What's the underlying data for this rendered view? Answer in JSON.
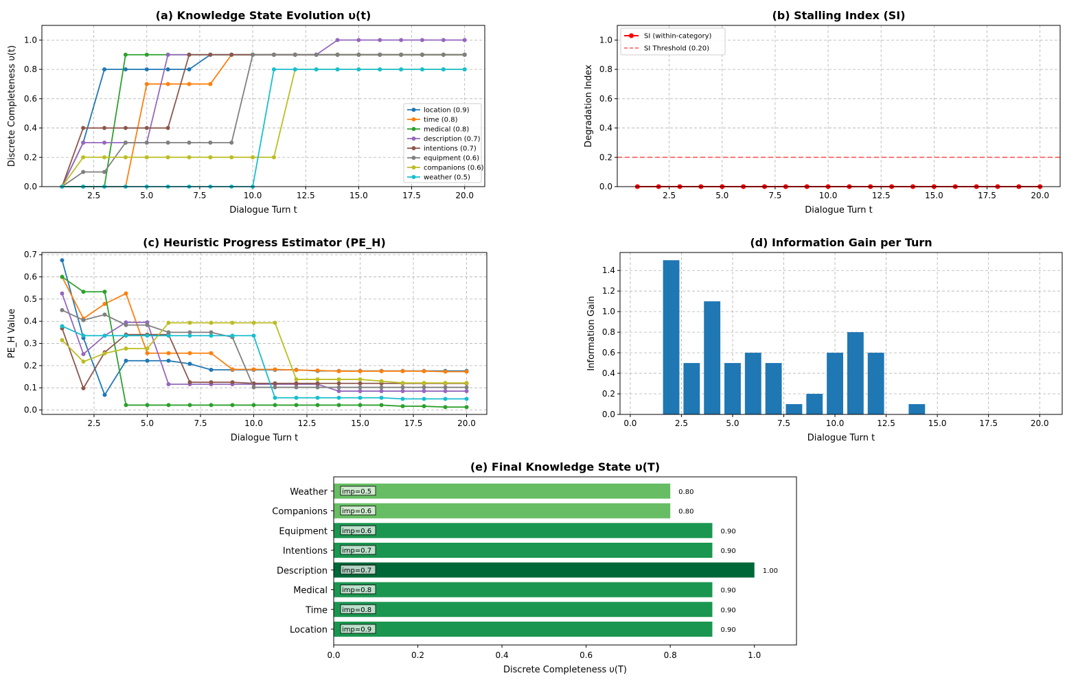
{
  "figure_type": "matplotlib multi-panel chart",
  "chart_data": [
    {
      "id": "a",
      "type": "line",
      "title": "(a) Knowledge State Evolution υ(t)",
      "xlabel": "Dialogue Turn t",
      "ylabel": "Discrete Completeness υ(t)",
      "xlim": [
        0.05,
        20.95
      ],
      "ylim": [
        0,
        1.1
      ],
      "xticks": [
        2.5,
        5.0,
        7.5,
        10.0,
        12.5,
        15.0,
        17.5,
        20.0
      ],
      "yticks": [
        0.0,
        0.2,
        0.4,
        0.6,
        0.8,
        1.0
      ],
      "grid": true,
      "legend_position": "lower right",
      "x": [
        1,
        2,
        3,
        4,
        5,
        6,
        7,
        8,
        9,
        10,
        11,
        12,
        13,
        14,
        15,
        16,
        17,
        18,
        19,
        20
      ],
      "series": [
        {
          "name": "location (0.9)",
          "color": "#1f77b4",
          "values": [
            0,
            0.3,
            0.8,
            0.8,
            0.8,
            0.8,
            0.8,
            0.9,
            0.9,
            0.9,
            0.9,
            0.9,
            0.9,
            0.9,
            0.9,
            0.9,
            0.9,
            0.9,
            0.9,
            0.9
          ]
        },
        {
          "name": "time (0.8)",
          "color": "#ff7f0e",
          "values": [
            0,
            0,
            0,
            0,
            0.7,
            0.7,
            0.7,
            0.7,
            0.9,
            0.9,
            0.9,
            0.9,
            0.9,
            0.9,
            0.9,
            0.9,
            0.9,
            0.9,
            0.9,
            0.9
          ]
        },
        {
          "name": "medical (0.8)",
          "color": "#2ca02c",
          "values": [
            0,
            0,
            0,
            0.9,
            0.9,
            0.9,
            0.9,
            0.9,
            0.9,
            0.9,
            0.9,
            0.9,
            0.9,
            0.9,
            0.9,
            0.9,
            0.9,
            0.9,
            0.9,
            0.9
          ]
        },
        {
          "name": "description (0.7)",
          "color": "#9467bd",
          "values": [
            0,
            0.3,
            0.3,
            0.3,
            0.3,
            0.9,
            0.9,
            0.9,
            0.9,
            0.9,
            0.9,
            0.9,
            0.9,
            1.0,
            1.0,
            1.0,
            1.0,
            1.0,
            1.0,
            1.0
          ]
        },
        {
          "name": "intentions (0.7)",
          "color": "#8c564b",
          "values": [
            0,
            0.4,
            0.4,
            0.4,
            0.4,
            0.4,
            0.9,
            0.9,
            0.9,
            0.9,
            0.9,
            0.9,
            0.9,
            0.9,
            0.9,
            0.9,
            0.9,
            0.9,
            0.9,
            0.9
          ]
        },
        {
          "name": "equipment (0.6)",
          "color": "#7f7f7f",
          "values": [
            0,
            0.1,
            0.1,
            0.3,
            0.3,
            0.3,
            0.3,
            0.3,
            0.3,
            0.9,
            0.9,
            0.9,
            0.9,
            0.9,
            0.9,
            0.9,
            0.9,
            0.9,
            0.9,
            0.9
          ]
        },
        {
          "name": "companions (0.6)",
          "color": "#bcbd22",
          "values": [
            0,
            0.2,
            0.2,
            0.2,
            0.2,
            0.2,
            0.2,
            0.2,
            0.2,
            0.2,
            0.2,
            0.8,
            0.8,
            0.8,
            0.8,
            0.8,
            0.8,
            0.8,
            0.8,
            0.8
          ]
        },
        {
          "name": "weather (0.5)",
          "color": "#17becf",
          "values": [
            0,
            0,
            0,
            0,
            0,
            0,
            0,
            0,
            0,
            0,
            0.8,
            0.8,
            0.8,
            0.8,
            0.8,
            0.8,
            0.8,
            0.8,
            0.8,
            0.8
          ]
        }
      ]
    },
    {
      "id": "b",
      "type": "line",
      "title": "(b) Stalling Index (SI)",
      "xlabel": "Dialogue Turn t",
      "ylabel": "Degradation Index",
      "xlim": [
        0.05,
        20.95
      ],
      "ylim": [
        0,
        1.1
      ],
      "xticks": [
        2.5,
        5.0,
        7.5,
        10.0,
        12.5,
        15.0,
        17.5,
        20.0
      ],
      "yticks": [
        0.0,
        0.2,
        0.4,
        0.6,
        0.8,
        1.0
      ],
      "grid": true,
      "legend_position": "upper left",
      "x": [
        1,
        2,
        3,
        4,
        5,
        6,
        7,
        8,
        9,
        10,
        11,
        12,
        13,
        14,
        15,
        16,
        17,
        18,
        19,
        20
      ],
      "series": [
        {
          "name": "SI (within-category)",
          "color": "#ff0000",
          "values": [
            0,
            0,
            0,
            0,
            0,
            0,
            0,
            0,
            0,
            0,
            0,
            0,
            0,
            0,
            0,
            0,
            0,
            0,
            0,
            0
          ]
        }
      ],
      "hline": {
        "name": "SI Threshold (0.20)",
        "y": 0.2,
        "color": "#ff5555"
      }
    },
    {
      "id": "c",
      "type": "line",
      "title": "(c) Heuristic Progress Estimator (PE_H)",
      "xlabel": "Dialogue Turn t",
      "ylabel": "PE_H Value",
      "xlim": [
        0.05,
        20.95
      ],
      "ylim": [
        -0.02,
        0.71
      ],
      "xticks": [
        2.5,
        5.0,
        7.5,
        10.0,
        12.5,
        15.0,
        17.5,
        20.0
      ],
      "yticks": [
        0.0,
        0.1,
        0.2,
        0.3,
        0.4,
        0.5,
        0.6,
        0.7
      ],
      "grid": true,
      "x": [
        1,
        2,
        3,
        4,
        5,
        6,
        7,
        8,
        9,
        10,
        11,
        12,
        13,
        14,
        15,
        16,
        17,
        18,
        19,
        20
      ],
      "series": [
        {
          "color": "#1f77b4",
          "values": [
            0.675,
            0.325,
            0.068,
            0.222,
            0.222,
            0.222,
            0.208,
            0.181,
            0.181,
            0.181,
            0.181,
            0.181,
            0.176,
            0.176,
            0.176,
            0.176,
            0.176,
            0.176,
            0.176,
            0.176
          ]
        },
        {
          "color": "#ff7f0e",
          "values": [
            0.6,
            0.412,
            0.478,
            0.525,
            0.256,
            0.256,
            0.256,
            0.256,
            0.183,
            0.183,
            0.183,
            0.18,
            0.178,
            0.175,
            0.175,
            0.175,
            0.175,
            0.175,
            0.173,
            0.173
          ]
        },
        {
          "color": "#2ca02c",
          "values": [
            0.6,
            0.533,
            0.533,
            0.022,
            0.022,
            0.022,
            0.022,
            0.022,
            0.022,
            0.022,
            0.022,
            0.022,
            0.022,
            0.022,
            0.022,
            0.022,
            0.017,
            0.017,
            0.013,
            0.013
          ]
        },
        {
          "color": "#9467bd",
          "values": [
            0.525,
            0.252,
            0.335,
            0.395,
            0.395,
            0.116,
            0.116,
            0.116,
            0.116,
            0.116,
            0.116,
            0.116,
            0.116,
            0.085,
            0.085,
            0.085,
            0.085,
            0.085,
            0.085,
            0.085
          ]
        },
        {
          "color": "#8c564b",
          "values": [
            0.368,
            0.098,
            0.26,
            0.34,
            0.34,
            0.34,
            0.125,
            0.125,
            0.125,
            0.12,
            0.12,
            0.12,
            0.12,
            0.12,
            0.12,
            0.12,
            0.12,
            0.12,
            0.12,
            0.12
          ]
        },
        {
          "color": "#7f7f7f",
          "values": [
            0.45,
            0.405,
            0.43,
            0.383,
            0.383,
            0.35,
            0.35,
            0.35,
            0.328,
            0.102,
            0.102,
            0.102,
            0.102,
            0.102,
            0.102,
            0.102,
            0.102,
            0.102,
            0.102,
            0.102
          ]
        },
        {
          "color": "#bcbd22",
          "values": [
            0.315,
            0.218,
            0.255,
            0.277,
            0.277,
            0.393,
            0.393,
            0.393,
            0.393,
            0.393,
            0.393,
            0.138,
            0.138,
            0.138,
            0.138,
            0.13,
            0.122,
            0.122,
            0.122,
            0.122
          ]
        },
        {
          "color": "#17becf",
          "values": [
            0.378,
            0.335,
            0.335,
            0.335,
            0.335,
            0.335,
            0.335,
            0.335,
            0.335,
            0.335,
            0.055,
            0.055,
            0.055,
            0.055,
            0.055,
            0.055,
            0.05,
            0.05,
            0.05,
            0.05
          ]
        }
      ]
    },
    {
      "id": "d",
      "type": "bar",
      "title": "(d) Information Gain per Turn",
      "xlabel": "Dialogue Turn t",
      "ylabel": "Information Gain",
      "xlim": [
        -0.5,
        21.1
      ],
      "ylim": [
        0,
        1.575
      ],
      "xticks": [
        0.0,
        2.5,
        5.0,
        7.5,
        10.0,
        12.5,
        15.0,
        17.5,
        20.0
      ],
      "yticks": [
        0.0,
        0.2,
        0.4,
        0.6,
        0.8,
        1.0,
        1.2,
        1.4
      ],
      "grid": true,
      "bar_color": "#1f77b4",
      "x": [
        2,
        3,
        4,
        5,
        6,
        7,
        8,
        9,
        10,
        11,
        12,
        14
      ],
      "values": [
        1.5,
        0.5,
        1.1,
        0.5,
        0.6,
        0.5,
        0.1,
        0.2,
        0.6,
        0.8,
        0.6,
        0.1
      ]
    },
    {
      "id": "e",
      "type": "bar",
      "orientation": "horizontal",
      "title": "(e) Final Knowledge State υ(T)",
      "xlabel": "Discrete Completeness υ(T)",
      "xlim": [
        0,
        1.1
      ],
      "xticks": [
        0.0,
        0.2,
        0.4,
        0.6,
        0.8,
        1.0
      ],
      "categories": [
        "Location",
        "Time",
        "Medical",
        "Description",
        "Intentions",
        "Equipment",
        "Companions",
        "Weather"
      ],
      "values": [
        0.9,
        0.9,
        0.9,
        1.0,
        0.9,
        0.9,
        0.8,
        0.8
      ],
      "value_labels": [
        "0.90",
        "0.90",
        "0.90",
        "1.00",
        "0.90",
        "0.90",
        "0.80",
        "0.80"
      ],
      "importance_labels": [
        "imp=0.9",
        "imp=0.8",
        "imp=0.8",
        "imp=0.7",
        "imp=0.7",
        "imp=0.6",
        "imp=0.6",
        "imp=0.5"
      ],
      "colors": [
        "#1b9650",
        "#1b9650",
        "#1b9650",
        "#006837",
        "#1b9650",
        "#1b9650",
        "#66bd63",
        "#66bd63"
      ]
    }
  ]
}
